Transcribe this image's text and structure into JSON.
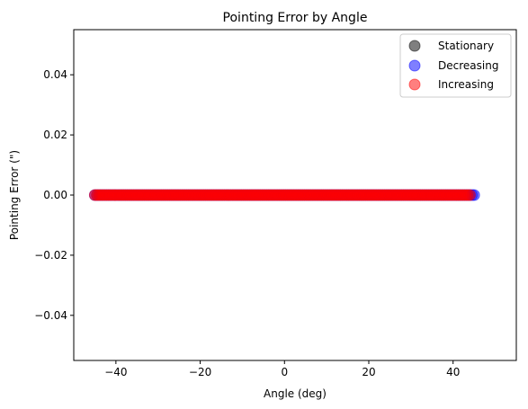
{
  "chart_data": {
    "type": "scatter",
    "title": "Pointing Error by Angle",
    "xlabel": "Angle (deg)",
    "ylabel": "Pointing Error (\")",
    "xlim": [
      -50,
      55
    ],
    "ylim": [
      -0.055,
      0.055
    ],
    "xticks": [
      -40,
      -20,
      0,
      20,
      40
    ],
    "xtick_labels": [
      "−40",
      "−20",
      "0",
      "20",
      "40"
    ],
    "yticks": [
      -0.04,
      -0.02,
      0.0,
      0.02,
      0.04
    ],
    "ytick_labels": [
      "−0.04",
      "−0.02",
      "0.00",
      "0.02",
      "0.04"
    ],
    "grid": false,
    "legend_position": "top-right",
    "series": [
      {
        "name": "Stationary",
        "color": "#000000",
        "alpha": 0.5,
        "x": [],
        "y": []
      },
      {
        "name": "Decreasing",
        "color": "#0000ff",
        "alpha": 0.5,
        "x_range": [
          -45,
          45
        ],
        "x_step": 0.5,
        "y_value": 0.0
      },
      {
        "name": "Increasing",
        "color": "#ff0000",
        "alpha": 0.5,
        "x_range": [
          -45,
          44
        ],
        "x_step": 0.5,
        "y_value": 0.0
      }
    ]
  }
}
